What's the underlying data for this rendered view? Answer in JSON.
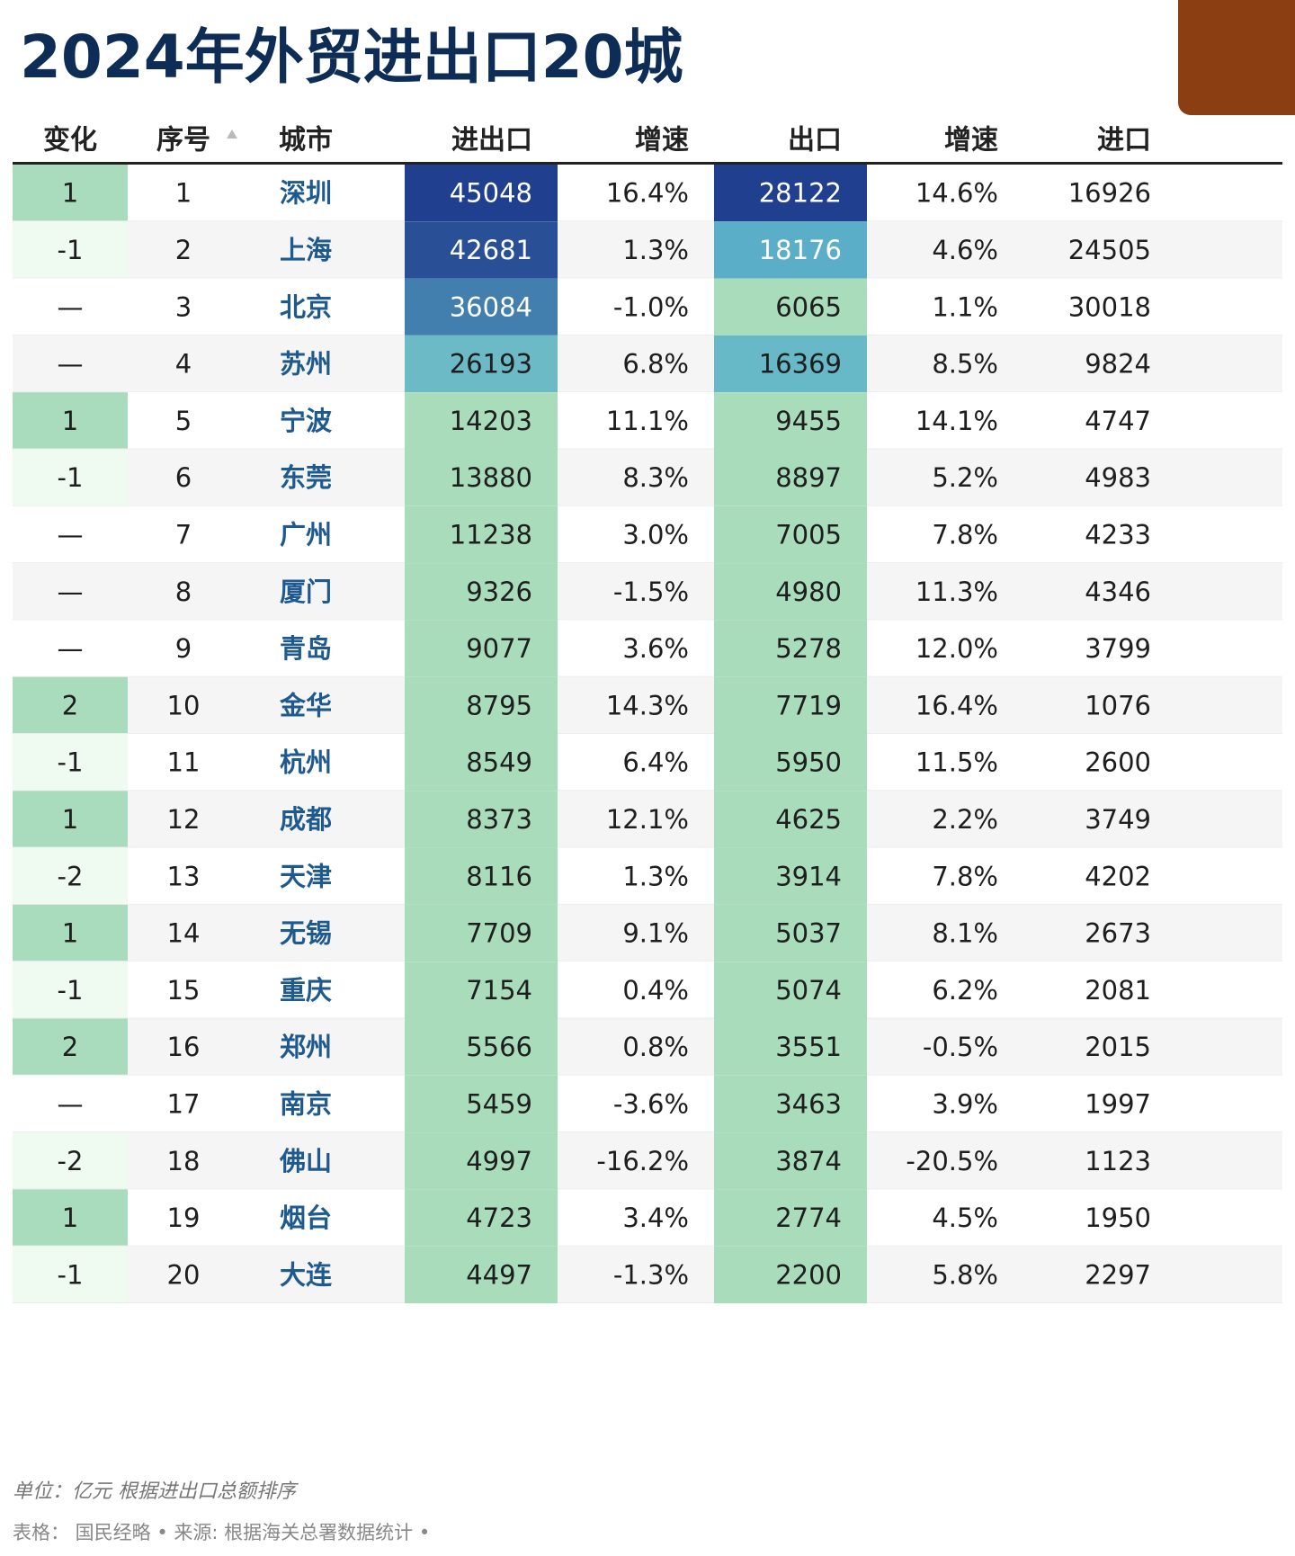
{
  "title": "2024年外贸进出口20城",
  "colors": {
    "title": "#0d2d57",
    "corner_block": "#8b3e12",
    "header_rule": "#222222",
    "row_alt": "#f5f5f5",
    "city_text": "#1e5a8f",
    "change_up": "#a9dcbc",
    "change_down": "#effaf0",
    "scale_low": "#a8dcbb",
    "scale_mid": "#5db3c9",
    "scale_high": "#203f8e"
  },
  "icons": {
    "sort_indicator": "triangle-up-icon"
  },
  "chart_data": {
    "type": "table",
    "columns": [
      "变化",
      "序号",
      "城市",
      "进出口",
      "增速",
      "出口",
      "增速",
      "进口"
    ],
    "sorted_column": "序号",
    "sort_direction": "ascending",
    "rows": [
      {
        "change": "1",
        "rank": "1",
        "city": "深圳",
        "total": 45048,
        "total_growth": "16.4%",
        "export": 28122,
        "export_growth": "14.6%",
        "import": 16926
      },
      {
        "change": "-1",
        "rank": "2",
        "city": "上海",
        "total": 42681,
        "total_growth": "1.3%",
        "export": 18176,
        "export_growth": "4.6%",
        "import": 24505
      },
      {
        "change": "—",
        "rank": "3",
        "city": "北京",
        "total": 36084,
        "total_growth": "-1.0%",
        "export": 6065,
        "export_growth": "1.1%",
        "import": 30018
      },
      {
        "change": "—",
        "rank": "4",
        "city": "苏州",
        "total": 26193,
        "total_growth": "6.8%",
        "export": 16369,
        "export_growth": "8.5%",
        "import": 9824
      },
      {
        "change": "1",
        "rank": "5",
        "city": "宁波",
        "total": 14203,
        "total_growth": "11.1%",
        "export": 9455,
        "export_growth": "14.1%",
        "import": 4747
      },
      {
        "change": "-1",
        "rank": "6",
        "city": "东莞",
        "total": 13880,
        "total_growth": "8.3%",
        "export": 8897,
        "export_growth": "5.2%",
        "import": 4983
      },
      {
        "change": "—",
        "rank": "7",
        "city": "广州",
        "total": 11238,
        "total_growth": "3.0%",
        "export": 7005,
        "export_growth": "7.8%",
        "import": 4233
      },
      {
        "change": "—",
        "rank": "8",
        "city": "厦门",
        "total": 9326,
        "total_growth": "-1.5%",
        "export": 4980,
        "export_growth": "11.3%",
        "import": 4346
      },
      {
        "change": "—",
        "rank": "9",
        "city": "青岛",
        "total": 9077,
        "total_growth": "3.6%",
        "export": 5278,
        "export_growth": "12.0%",
        "import": 3799
      },
      {
        "change": "2",
        "rank": "10",
        "city": "金华",
        "total": 8795,
        "total_growth": "14.3%",
        "export": 7719,
        "export_growth": "16.4%",
        "import": 1076
      },
      {
        "change": "-1",
        "rank": "11",
        "city": "杭州",
        "total": 8549,
        "total_growth": "6.4%",
        "export": 5950,
        "export_growth": "11.5%",
        "import": 2600
      },
      {
        "change": "1",
        "rank": "12",
        "city": "成都",
        "total": 8373,
        "total_growth": "12.1%",
        "export": 4625,
        "export_growth": "2.2%",
        "import": 3749
      },
      {
        "change": "-2",
        "rank": "13",
        "city": "天津",
        "total": 8116,
        "total_growth": "1.3%",
        "export": 3914,
        "export_growth": "7.8%",
        "import": 4202
      },
      {
        "change": "1",
        "rank": "14",
        "city": "无锡",
        "total": 7709,
        "total_growth": "9.1%",
        "export": 5037,
        "export_growth": "8.1%",
        "import": 2673
      },
      {
        "change": "-1",
        "rank": "15",
        "city": "重庆",
        "total": 7154,
        "total_growth": "0.4%",
        "export": 5074,
        "export_growth": "6.2%",
        "import": 2081
      },
      {
        "change": "2",
        "rank": "16",
        "city": "郑州",
        "total": 5566,
        "total_growth": "0.8%",
        "export": 3551,
        "export_growth": "-0.5%",
        "import": 2015
      },
      {
        "change": "—",
        "rank": "17",
        "city": "南京",
        "total": 5459,
        "total_growth": "-3.6%",
        "export": 3463,
        "export_growth": "3.9%",
        "import": 1997
      },
      {
        "change": "-2",
        "rank": "18",
        "city": "佛山",
        "total": 4997,
        "total_growth": "-16.2%",
        "export": 3874,
        "export_growth": "-20.5%",
        "import": 1123
      },
      {
        "change": "1",
        "rank": "19",
        "city": "烟台",
        "total": 4723,
        "total_growth": "3.4%",
        "export": 2774,
        "export_growth": "4.5%",
        "import": 1950
      },
      {
        "change": "-1",
        "rank": "20",
        "city": "大连",
        "total": 4497,
        "total_growth": "-1.3%",
        "export": 2200,
        "export_growth": "5.8%",
        "import": 2297
      }
    ]
  },
  "footer": {
    "note": "单位：亿元 根据进出口总额排序",
    "source": "表格： 国民经略 • 来源: 根据海关总署数据统计 •"
  }
}
